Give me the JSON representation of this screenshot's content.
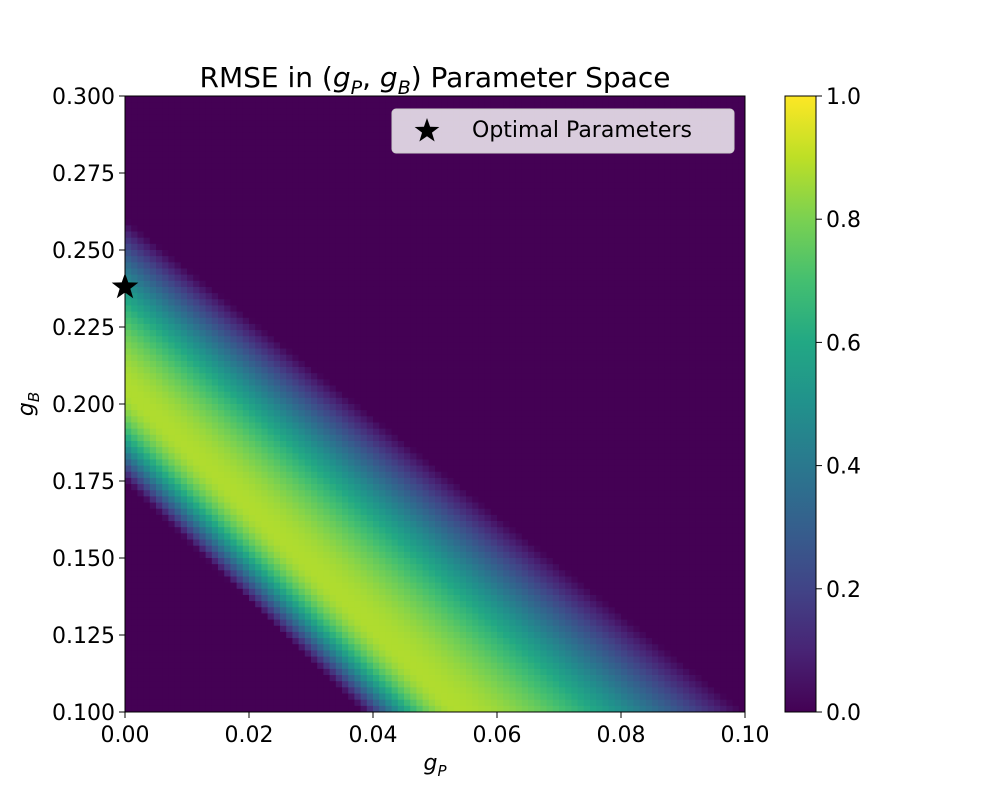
{
  "chart_data": {
    "type": "heatmap",
    "title": "RMSE in (gP, gB) Parameter Space",
    "title_parts": {
      "prefix": "RMSE in (",
      "suffix": ") Parameter Space"
    },
    "xlabel": "gP",
    "ylabel": "gB",
    "xlim": [
      0.0,
      0.1
    ],
    "ylim": [
      0.1,
      0.3
    ],
    "x_ticks": [
      "0.00",
      "0.02",
      "0.04",
      "0.06",
      "0.08",
      "0.10"
    ],
    "y_ticks": [
      "0.100",
      "0.125",
      "0.150",
      "0.175",
      "0.200",
      "0.225",
      "0.250",
      "0.275",
      "0.300"
    ],
    "colorbar": {
      "range": [
        0.0,
        1.0
      ],
      "ticks": [
        "0.0",
        "0.2",
        "0.4",
        "0.6",
        "0.8",
        "1.0"
      ],
      "colormap": "viridis"
    },
    "grid": false,
    "legend": {
      "placement": "top-right",
      "entries": [
        "Optimal Parameters"
      ]
    },
    "optimal_point": {
      "x": 0.0,
      "y": 0.238
    },
    "field_description": {
      "zero_boundary_intercept_y": 0.26,
      "zero_boundary_intercept_x": 0.1,
      "peak_value": 0.88,
      "peak_line_intercept_y": 0.205,
      "peak_line_slope": -1.95
    }
  }
}
